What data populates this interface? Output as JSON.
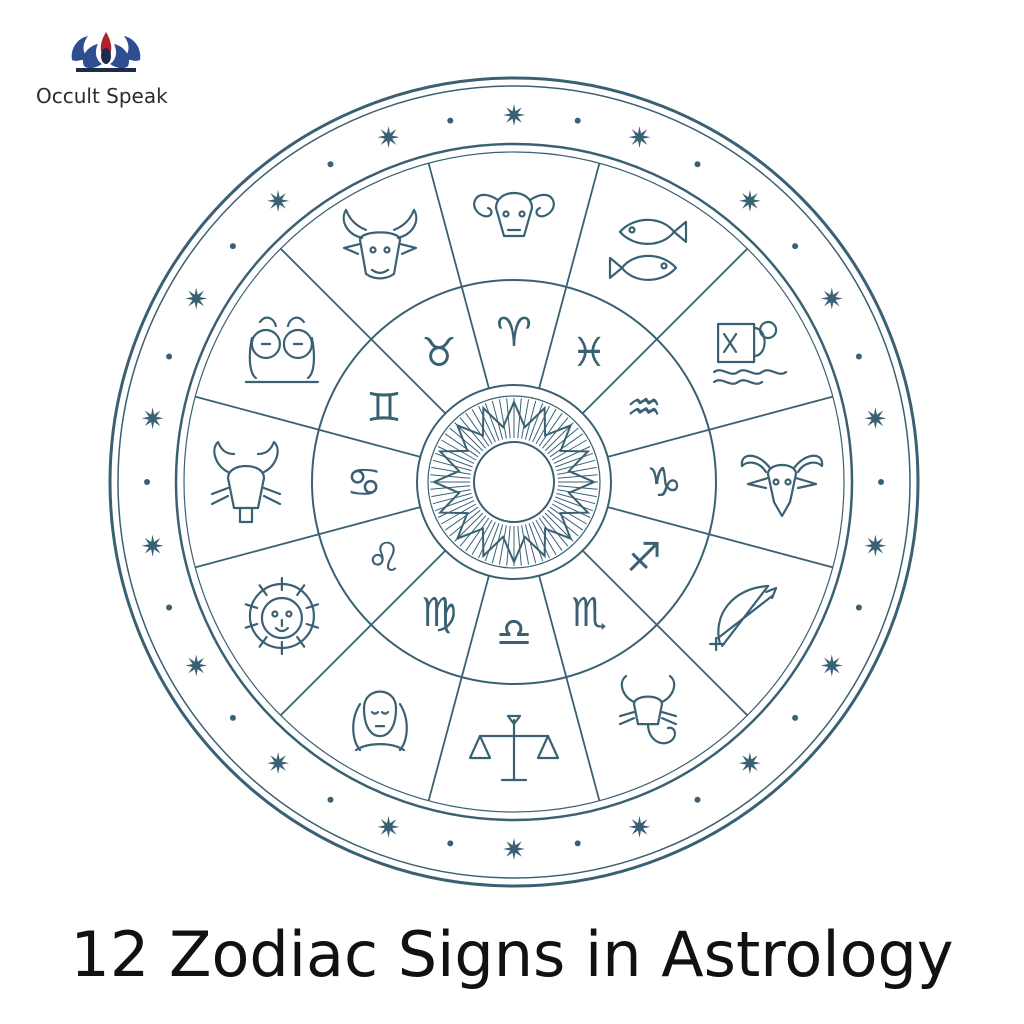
{
  "brand": {
    "name": "Occult Speak"
  },
  "caption": "12 Zodiac Signs in Astrology",
  "colors": {
    "line": "#3a6173",
    "brand_red": "#b0232a",
    "brand_blue": "#2f4e8f"
  },
  "zodiac": {
    "glyphs": [
      "♈",
      "♉",
      "♊",
      "♋",
      "♌",
      "♍",
      "♎",
      "♏",
      "♐",
      "♑",
      "♒",
      "♓"
    ],
    "figures": [
      "ram",
      "bull",
      "twins",
      "crab",
      "lion",
      "maiden",
      "scales",
      "scorpion",
      "archer",
      "goat",
      "water-bearer",
      "fish"
    ]
  }
}
